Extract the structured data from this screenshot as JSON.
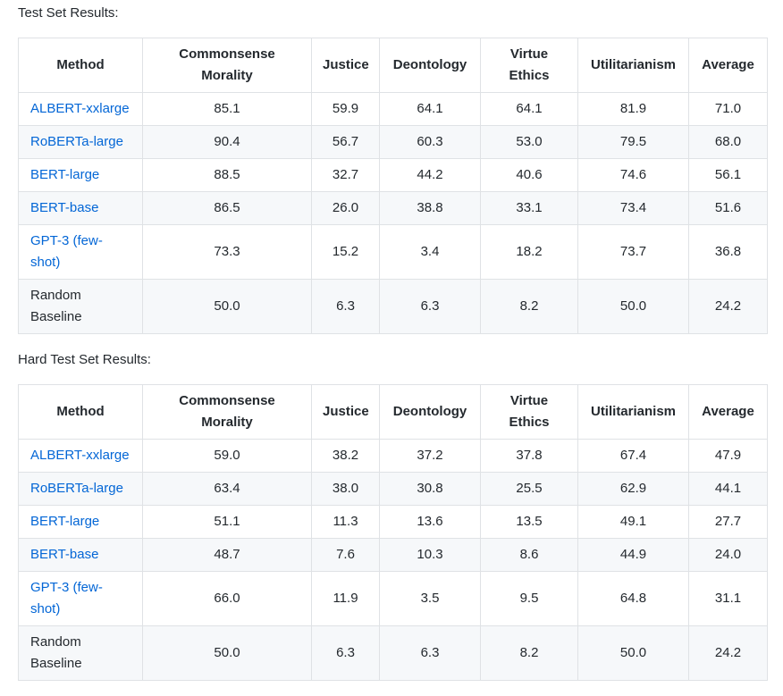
{
  "tables": [
    {
      "label": "Test Set Results:",
      "headers": [
        "Method",
        "Commonsense Morality",
        "Justice",
        "Deontology",
        "Virtue Ethics",
        "Utilitarianism",
        "Average"
      ],
      "rows": [
        {
          "method": "ALBERT-xxlarge",
          "link": true,
          "values": [
            "85.1",
            "59.9",
            "64.1",
            "64.1",
            "81.9",
            "71.0"
          ]
        },
        {
          "method": "RoBERTa-large",
          "link": true,
          "values": [
            "90.4",
            "56.7",
            "60.3",
            "53.0",
            "79.5",
            "68.0"
          ]
        },
        {
          "method": "BERT-large",
          "link": true,
          "values": [
            "88.5",
            "32.7",
            "44.2",
            "40.6",
            "74.6",
            "56.1"
          ]
        },
        {
          "method": "BERT-base",
          "link": true,
          "values": [
            "86.5",
            "26.0",
            "38.8",
            "33.1",
            "73.4",
            "51.6"
          ]
        },
        {
          "method": "GPT-3 (few-shot)",
          "link": true,
          "values": [
            "73.3",
            "15.2",
            "3.4",
            "18.2",
            "73.7",
            "36.8"
          ]
        },
        {
          "method": "Random Baseline",
          "link": false,
          "values": [
            "50.0",
            "6.3",
            "6.3",
            "8.2",
            "50.0",
            "24.2"
          ]
        }
      ]
    },
    {
      "label": "Hard Test Set Results:",
      "headers": [
        "Method",
        "Commonsense Morality",
        "Justice",
        "Deontology",
        "Virtue Ethics",
        "Utilitarianism",
        "Average"
      ],
      "rows": [
        {
          "method": "ALBERT-xxlarge",
          "link": true,
          "values": [
            "59.0",
            "38.2",
            "37.2",
            "37.8",
            "67.4",
            "47.9"
          ]
        },
        {
          "method": "RoBERTa-large",
          "link": true,
          "values": [
            "63.4",
            "38.0",
            "30.8",
            "25.5",
            "62.9",
            "44.1"
          ]
        },
        {
          "method": "BERT-large",
          "link": true,
          "values": [
            "51.1",
            "11.3",
            "13.6",
            "13.5",
            "49.1",
            "27.7"
          ]
        },
        {
          "method": "BERT-base",
          "link": true,
          "values": [
            "48.7",
            "7.6",
            "10.3",
            "8.6",
            "44.9",
            "24.0"
          ]
        },
        {
          "method": "GPT-3 (few-shot)",
          "link": true,
          "values": [
            "66.0",
            "11.9",
            "3.5",
            "9.5",
            "64.8",
            "31.1"
          ]
        },
        {
          "method": "Random Baseline",
          "link": false,
          "values": [
            "50.0",
            "6.3",
            "6.3",
            "8.2",
            "50.0",
            "24.2"
          ]
        }
      ]
    }
  ],
  "colors": {
    "link": "#0366d6",
    "text": "#24292e",
    "border": "#dfe2e5",
    "stripe": "#f6f8fa"
  }
}
